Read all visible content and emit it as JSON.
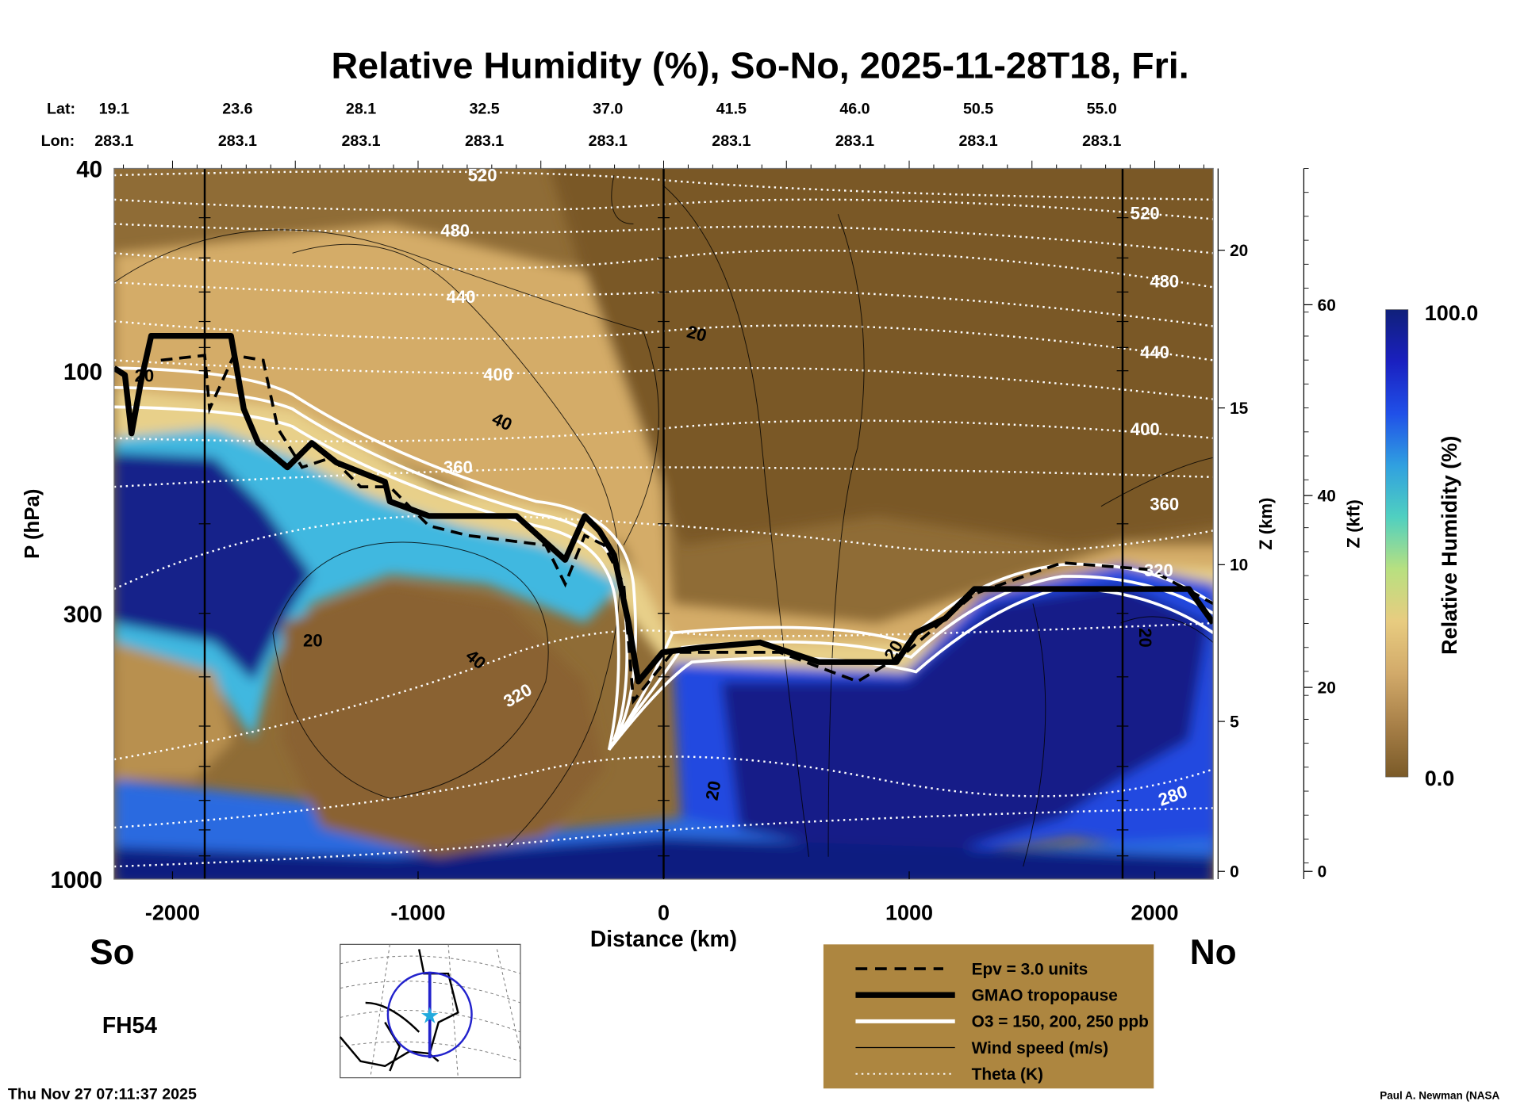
{
  "title": "Relative Humidity (%), So-No, 2025-11-28T18, Fri.",
  "lat_label": "Lat:",
  "lon_label": "Lon:",
  "lat": [
    "19.1",
    "23.6",
    "28.1",
    "32.5",
    "37.0",
    "41.5",
    "46.0",
    "50.5",
    "55.0"
  ],
  "lon": [
    "283.1",
    "283.1",
    "283.1",
    "283.1",
    "283.1",
    "283.1",
    "283.1",
    "283.1",
    "283.1"
  ],
  "left_end": "So",
  "right_end": "No",
  "forecast_hour": "FH54",
  "timestamp": "Thu Nov 27 07:11:37 2025",
  "credit": "Paul A. Newman (NASA",
  "legend": {
    "items": [
      "Epv = 3.0 units",
      "GMAO tropopause",
      "O3 = 150, 200, 250 ppb",
      "Wind speed (m/s)",
      "Theta (K)"
    ],
    "o3_prefix": "O",
    "o3_sub": "3",
    "o3_suffix": " = 150, 200, 250 ppb",
    "bg": "#ad8640"
  },
  "colorbar": {
    "title": "Relative Humidity (%)",
    "max_label": "100.0",
    "min_label": "0.0",
    "colors": [
      "#7a5a28",
      "#a88048",
      "#d2aa6a",
      "#e8cc80",
      "#b8e080",
      "#50d0c0",
      "#30a0e0",
      "#2050e8",
      "#1a20c0",
      "#10207a"
    ]
  },
  "chart_data": {
    "type": "heatmap",
    "title": "Relative Humidity (%), So-No, 2025-11-28T18, Fri.",
    "xlabel": "Distance (km)",
    "ylabel": "P (hPa)",
    "y2label": "Z (km)",
    "y3label": "Z (kft)",
    "xlim": [
      -2238,
      2238
    ],
    "ylim": [
      40,
      1000
    ],
    "yscale": "log",
    "xticks": [
      "-2000",
      "-1000",
      "0",
      "1000",
      "2000"
    ],
    "xtick_values": [
      -2000,
      -1000,
      0,
      1000,
      2000
    ],
    "yticks": [
      "40",
      "100",
      "300",
      "1000"
    ],
    "ytick_values": [
      40,
      100,
      300,
      1000
    ],
    "zkm_ticks": [
      "20",
      "15",
      "10",
      "5",
      "0"
    ],
    "zkft_ticks": [
      "60",
      "40",
      "20",
      "0"
    ],
    "vertical_markers_km": [
      -1870,
      0,
      1870
    ],
    "theta_labels_left": [
      "520",
      "480",
      "440",
      "400",
      "360",
      "320"
    ],
    "theta_labels_right": [
      "520",
      "480",
      "440",
      "400",
      "360",
      "320",
      "280"
    ],
    "wind_labels": [
      "20",
      "20",
      "40",
      "20",
      "40",
      "20",
      "20",
      "20"
    ],
    "tropopause": {
      "name": "GMAO tropopause",
      "distance_km": [
        -2238,
        -2194,
        -2167,
        -2127,
        -2087,
        -1909,
        -1762,
        -1710,
        -1651,
        -1532,
        -1433,
        -1333,
        -1234,
        -1135,
        -1115,
        -956,
        -599,
        -401,
        -321,
        -262,
        -202,
        -143,
        -103,
        -4,
        155,
        393,
        631,
        948,
        1028,
        1147,
        1266,
        1623,
        2139,
        2238
      ],
      "pressure_hpa": [
        98.8,
        101.9,
        132.8,
        104,
        85.4,
        85.4,
        85.4,
        118.9,
        138.7,
        154.9,
        138.7,
        151.5,
        158.3,
        165.4,
        180.7,
        193.1,
        193.1,
        235.4,
        193.1,
        206.3,
        230.3,
        313.5,
        408.5,
        357.9,
        350.1,
        342.4,
        374.1,
        374.1,
        327.7,
        306.8,
        268.7,
        268.7,
        268.7,
        313.5
      ]
    }
  }
}
